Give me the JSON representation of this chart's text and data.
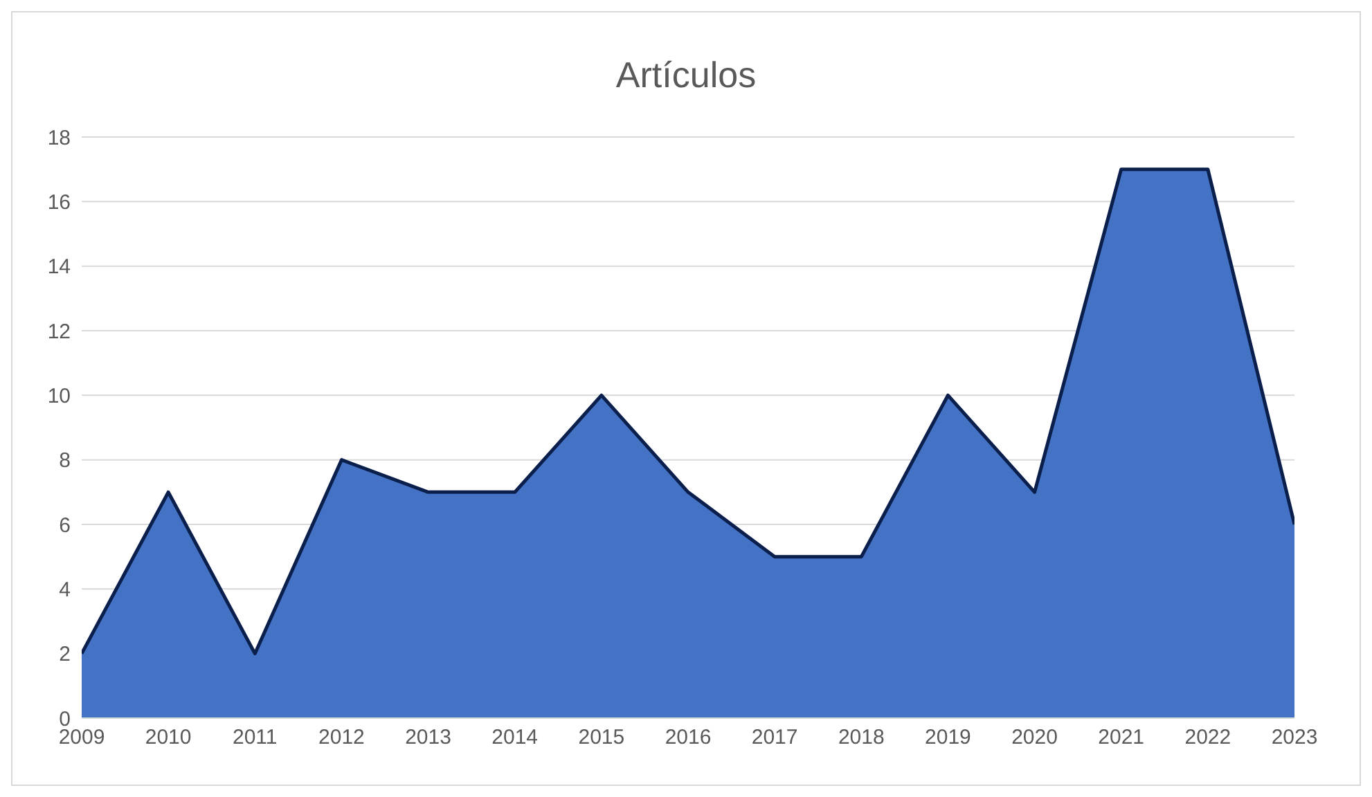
{
  "chart_data": {
    "type": "area",
    "title": "Artículos",
    "categories": [
      "2009",
      "2010",
      "2011",
      "2012",
      "2013",
      "2014",
      "2015",
      "2016",
      "2017",
      "2018",
      "2019",
      "2020",
      "2021",
      "2022",
      "2023"
    ],
    "series": [
      {
        "color": "#4472c4",
        "values": [
          2,
          7,
          2,
          8,
          7,
          7,
          10,
          7,
          5,
          5,
          10,
          7,
          17,
          17,
          6
        ]
      }
    ],
    "ylim": [
      0,
      18
    ],
    "yticks": [
      0,
      2,
      4,
      6,
      8,
      10,
      12,
      14,
      16,
      18
    ],
    "grid": "y",
    "legend": false
  }
}
